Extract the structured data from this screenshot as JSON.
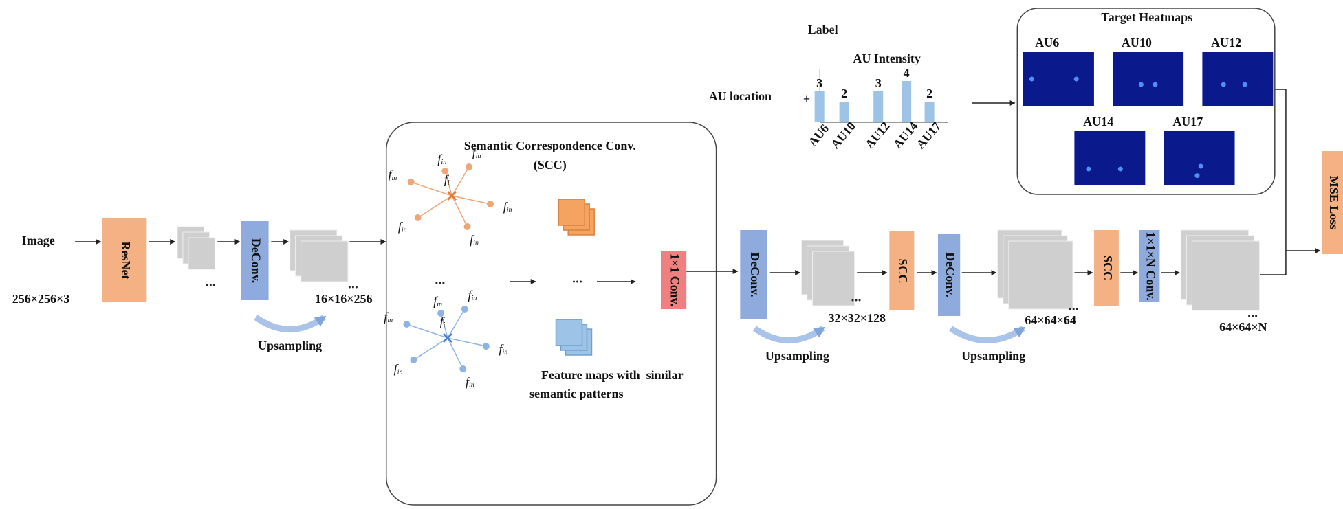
{
  "input": {
    "label": "Image",
    "size": "256×256×3"
  },
  "backbone": "ResNet",
  "stage1": {
    "deconv": "DeConv.",
    "size": "16×16×256",
    "upsampling": "Upsampling"
  },
  "scc_module": {
    "title": "Semantic Correspondence Conv.",
    "subtitle": "(SCC)",
    "center_node": {
      "base": "f",
      "sub": "i"
    },
    "neighbor_node": {
      "base": "f",
      "sub": "in"
    },
    "caption": [
      "Feature maps with  similar",
      "semantic patterns"
    ],
    "conv": "1×1 Conv."
  },
  "stage2": {
    "deconv": "DeConv.",
    "size": "32×32×128",
    "upsampling": "Upsampling",
    "scc": "SCC"
  },
  "stage3": {
    "deconv": "DeConv.",
    "size": "64×64×64",
    "upsampling": "Upsampling",
    "scc": "SCC"
  },
  "output": {
    "conv": "1×1×N Conv.",
    "size": "64×64×N"
  },
  "loss": "MSE Loss",
  "label": {
    "title": "Label",
    "location": "AU location",
    "plus": "+"
  },
  "chart_data": {
    "type": "bar",
    "title": "AU Intensity",
    "categories": [
      "AU6",
      "AU10",
      "AU12",
      "AU14",
      "AU17"
    ],
    "values": [
      3,
      2,
      3,
      4,
      2
    ],
    "color": "#9dc3e6"
  },
  "heatmaps": {
    "title": "Target Heatmaps",
    "items": [
      "AU6",
      "AU10",
      "AU12",
      "AU14",
      "AU17"
    ]
  }
}
